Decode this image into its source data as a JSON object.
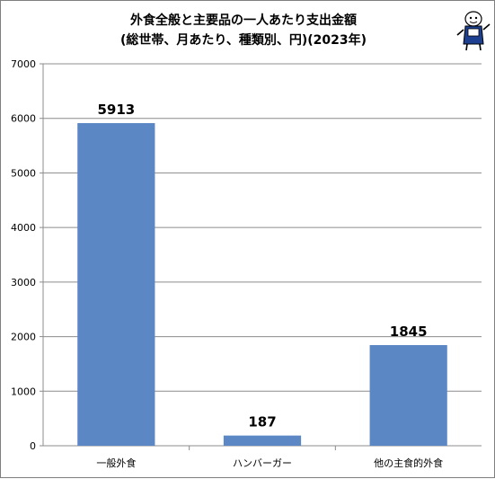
{
  "chart_data": {
    "type": "bar",
    "title_lines": [
      "外食全般と主要品の一人あたり支出金額",
      "(総世帯、月あたり、種類別、円)(2023年)"
    ],
    "categories": [
      "一般外食",
      "ハンバーガー",
      "他の主食的外食"
    ],
    "values": [
      5913,
      187,
      1845
    ],
    "data_labels": [
      "5913",
      "187",
      "1845"
    ],
    "ylim": [
      0,
      7000
    ],
    "y_ticks": [
      0,
      1000,
      2000,
      3000,
      4000,
      5000,
      6000,
      7000
    ],
    "y_tick_labels": [
      "0",
      "1000",
      "2000",
      "3000",
      "4000",
      "5000",
      "6000",
      "7000"
    ],
    "grid": true,
    "legend": "none",
    "xlabel": "",
    "ylabel": "",
    "colors": {
      "bar": "#5b87c5",
      "grid": "#8c8c8c",
      "axis": "#8c8c8c"
    },
    "logo_icon": "mascot-character-icon"
  }
}
